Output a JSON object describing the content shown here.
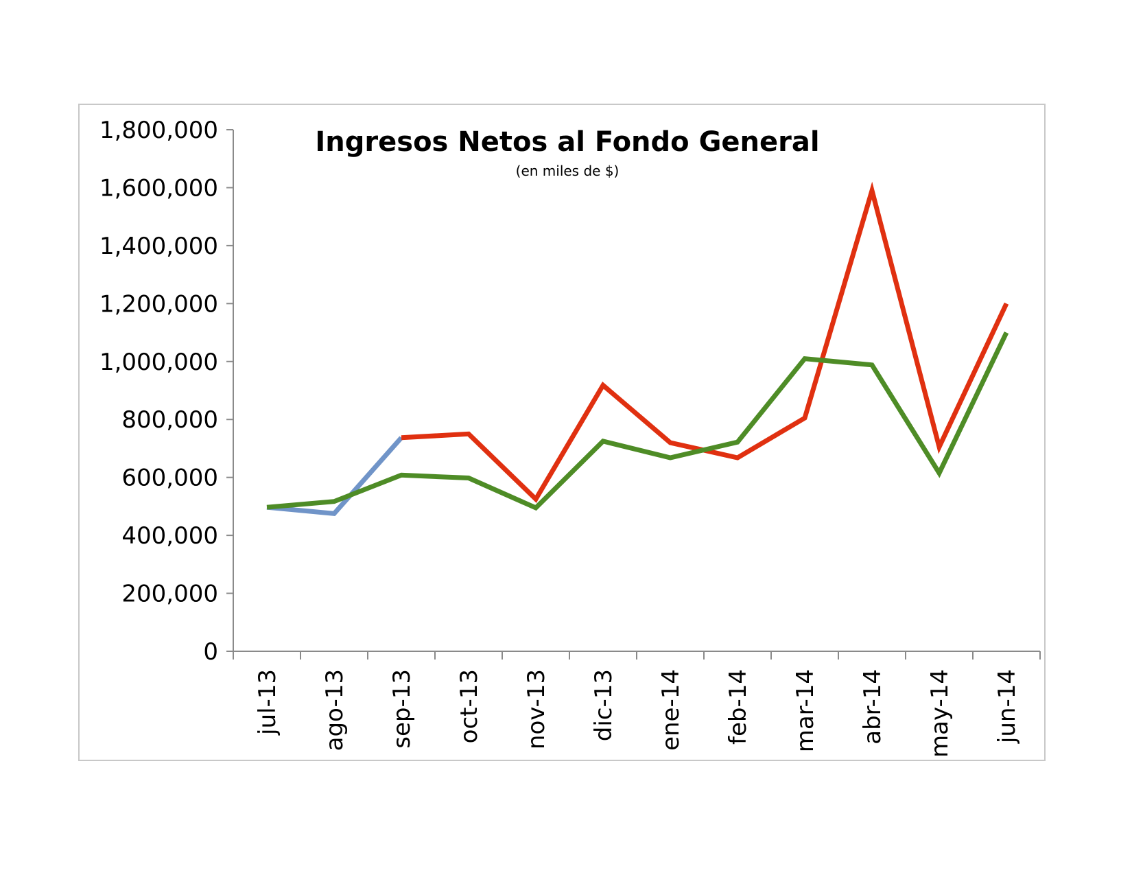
{
  "chart_data": {
    "type": "line",
    "title": "Ingresos Netos al Fondo General",
    "subtitle": "(en miles de $)",
    "xlabel": "",
    "ylabel": "",
    "categories": [
      "jul-13",
      "ago-13",
      "sep-13",
      "oct-13",
      "nov-13",
      "dic-13",
      "ene-14",
      "feb-14",
      "mar-14",
      "abr-14",
      "may-14",
      "jun-14"
    ],
    "ylim": [
      0,
      1800000
    ],
    "yticks": [
      0,
      200000,
      400000,
      600000,
      800000,
      1000000,
      1200000,
      1400000,
      1600000,
      1800000
    ],
    "ytick_labels": [
      "0",
      "200,000",
      "400,000",
      "600,000",
      "800,000",
      "1,000,000",
      "1,200,000",
      "1,400,000",
      "1,600,000",
      "1,800,000"
    ],
    "grid": false,
    "legend": "none",
    "series": [
      {
        "color": "#7094c8",
        "values": [
          497000,
          475000,
          737000,
          null,
          null,
          null,
          null,
          null,
          null,
          null,
          null,
          null
        ]
      },
      {
        "color": "#e03010",
        "values": [
          null,
          null,
          737000,
          750000,
          525000,
          918000,
          720000,
          668000,
          805000,
          1590000,
          705000,
          1200000
        ]
      },
      {
        "color": "#4e8c26",
        "values": [
          497000,
          517000,
          608000,
          598000,
          495000,
          725000,
          668000,
          722000,
          1010000,
          988000,
          615000,
          1100000
        ]
      }
    ]
  }
}
